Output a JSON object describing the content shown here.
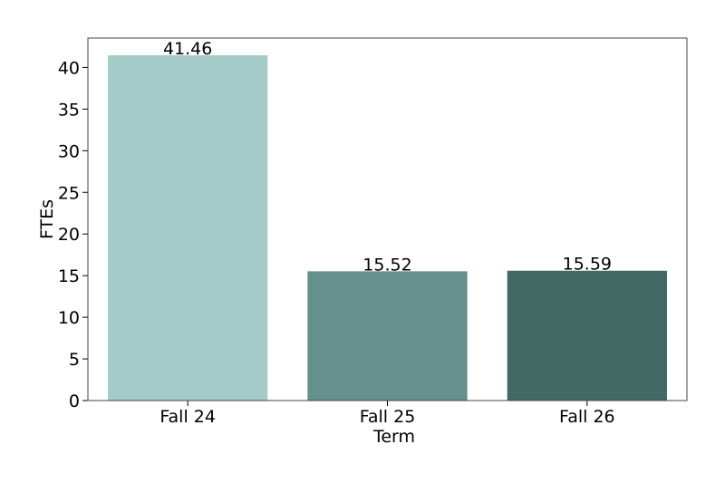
{
  "chart_data": {
    "type": "bar",
    "x_label": "Term",
    "y_label": "FTEs",
    "categories": [
      "Fall 24",
      "Fall 25",
      "Fall 26"
    ],
    "values": [
      41.46,
      15.52,
      15.59
    ],
    "colors": [
      "#a4cbc8",
      "#66908b",
      "#426964"
    ],
    "ylim": [
      0,
      43.53
    ],
    "yticks": [
      0,
      5,
      10,
      15,
      20,
      25,
      30,
      35,
      40
    ],
    "grid": false
  }
}
